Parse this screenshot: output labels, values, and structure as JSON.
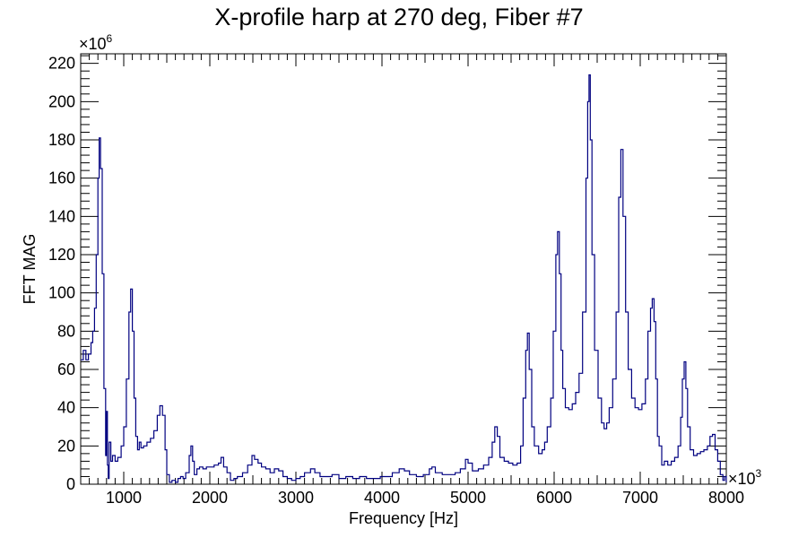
{
  "chart_data": {
    "type": "line",
    "title": "X-profile harp at 270 deg, Fiber #7",
    "xlabel": "Frequency [Hz]",
    "ylabel": "FFT MAG",
    "x_multiplier": "×10",
    "x_multiplier_exp": "3",
    "y_multiplier": "×10",
    "y_multiplier_exp": "6",
    "xlim": [
      0.5,
      8
    ],
    "ylim": [
      0,
      225
    ],
    "x_ticks": [
      1,
      2,
      3,
      4,
      5,
      6,
      7,
      8
    ],
    "x_tick_labels": [
      "1000",
      "2000",
      "3000",
      "4000",
      "5000",
      "6000",
      "7000",
      "8000"
    ],
    "y_ticks": [
      0,
      20,
      40,
      60,
      80,
      100,
      120,
      140,
      160,
      180,
      200,
      220
    ],
    "y_tick_labels": [
      "0",
      "20",
      "40",
      "60",
      "80",
      "100",
      "120",
      "140",
      "160",
      "180",
      "200",
      "220"
    ],
    "grid": false,
    "line_color": "#000080",
    "series": [
      {
        "points": [
          [
            0.5,
            65
          ],
          [
            0.53,
            70
          ],
          [
            0.56,
            65
          ],
          [
            0.59,
            68
          ],
          [
            0.62,
            74
          ],
          [
            0.64,
            80
          ],
          [
            0.66,
            92
          ],
          [
            0.68,
            120
          ],
          [
            0.7,
            160
          ],
          [
            0.715,
            181
          ],
          [
            0.73,
            165
          ],
          [
            0.75,
            110
          ],
          [
            0.77,
            50
          ],
          [
            0.79,
            15
          ],
          [
            0.8,
            38
          ],
          [
            0.81,
            10
          ],
          [
            0.82,
            3
          ],
          [
            0.83,
            22
          ],
          [
            0.85,
            12
          ],
          [
            0.87,
            15
          ],
          [
            0.9,
            12
          ],
          [
            0.93,
            14
          ],
          [
            0.97,
            20
          ],
          [
            1.0,
            30
          ],
          [
            1.03,
            55
          ],
          [
            1.06,
            90
          ],
          [
            1.08,
            102
          ],
          [
            1.1,
            80
          ],
          [
            1.12,
            45
          ],
          [
            1.14,
            25
          ],
          [
            1.16,
            18
          ],
          [
            1.18,
            22
          ],
          [
            1.2,
            19
          ],
          [
            1.23,
            20
          ],
          [
            1.27,
            22
          ],
          [
            1.31,
            24
          ],
          [
            1.35,
            28
          ],
          [
            1.39,
            36
          ],
          [
            1.42,
            41
          ],
          [
            1.45,
            36
          ],
          [
            1.48,
            18
          ],
          [
            1.5,
            5
          ],
          [
            1.53,
            1
          ],
          [
            1.56,
            2
          ],
          [
            1.6,
            1
          ],
          [
            1.63,
            3
          ],
          [
            1.66,
            4
          ],
          [
            1.69,
            3
          ],
          [
            1.72,
            6
          ],
          [
            1.76,
            15
          ],
          [
            1.78,
            20
          ],
          [
            1.8,
            12
          ],
          [
            1.82,
            5
          ],
          [
            1.85,
            8
          ],
          [
            1.88,
            9
          ],
          [
            1.92,
            8
          ],
          [
            1.96,
            9
          ],
          [
            2.0,
            9
          ],
          [
            2.05,
            10
          ],
          [
            2.1,
            11
          ],
          [
            2.13,
            14
          ],
          [
            2.16,
            9
          ],
          [
            2.2,
            6
          ],
          [
            2.24,
            2
          ],
          [
            2.28,
            3
          ],
          [
            2.32,
            4
          ],
          [
            2.38,
            6
          ],
          [
            2.44,
            10
          ],
          [
            2.49,
            15
          ],
          [
            2.52,
            13
          ],
          [
            2.56,
            11
          ],
          [
            2.6,
            9
          ],
          [
            2.65,
            8
          ],
          [
            2.7,
            6
          ],
          [
            2.75,
            8
          ],
          [
            2.8,
            7
          ],
          [
            2.85,
            4
          ],
          [
            2.9,
            3
          ],
          [
            2.95,
            2
          ],
          [
            3.0,
            3
          ],
          [
            3.05,
            4
          ],
          [
            3.1,
            6
          ],
          [
            3.17,
            8
          ],
          [
            3.22,
            6
          ],
          [
            3.28,
            4
          ],
          [
            3.35,
            4
          ],
          [
            3.42,
            5
          ],
          [
            3.5,
            3
          ],
          [
            3.58,
            4
          ],
          [
            3.66,
            3
          ],
          [
            3.74,
            4
          ],
          [
            3.82,
            3
          ],
          [
            3.9,
            3
          ],
          [
            3.98,
            4
          ],
          [
            4.05,
            4
          ],
          [
            4.12,
            6
          ],
          [
            4.2,
            8
          ],
          [
            4.26,
            7
          ],
          [
            4.32,
            5
          ],
          [
            4.4,
            4
          ],
          [
            4.48,
            5
          ],
          [
            4.55,
            8
          ],
          [
            4.58,
            9
          ],
          [
            4.62,
            6
          ],
          [
            4.7,
            5
          ],
          [
            4.78,
            5
          ],
          [
            4.85,
            6
          ],
          [
            4.91,
            8
          ],
          [
            4.97,
            13
          ],
          [
            5.0,
            11
          ],
          [
            5.05,
            7
          ],
          [
            5.12,
            8
          ],
          [
            5.18,
            10
          ],
          [
            5.24,
            14
          ],
          [
            5.28,
            22
          ],
          [
            5.31,
            30
          ],
          [
            5.34,
            25
          ],
          [
            5.37,
            14
          ],
          [
            5.42,
            12
          ],
          [
            5.47,
            11
          ],
          [
            5.52,
            10
          ],
          [
            5.57,
            11
          ],
          [
            5.61,
            20
          ],
          [
            5.64,
            45
          ],
          [
            5.67,
            70
          ],
          [
            5.69,
            79
          ],
          [
            5.71,
            60
          ],
          [
            5.74,
            30
          ],
          [
            5.77,
            20
          ],
          [
            5.82,
            16
          ],
          [
            5.86,
            18
          ],
          [
            5.89,
            22
          ],
          [
            5.92,
            30
          ],
          [
            5.96,
            45
          ],
          [
            5.99,
            80
          ],
          [
            6.02,
            120
          ],
          [
            6.04,
            132
          ],
          [
            6.06,
            110
          ],
          [
            6.08,
            70
          ],
          [
            6.1,
            50
          ],
          [
            6.13,
            40
          ],
          [
            6.17,
            39
          ],
          [
            6.21,
            42
          ],
          [
            6.25,
            48
          ],
          [
            6.29,
            58
          ],
          [
            6.33,
            90
          ],
          [
            6.37,
            160
          ],
          [
            6.39,
            200
          ],
          [
            6.405,
            214
          ],
          [
            6.42,
            180
          ],
          [
            6.44,
            120
          ],
          [
            6.47,
            70
          ],
          [
            6.51,
            45
          ],
          [
            6.55,
            32
          ],
          [
            6.58,
            29
          ],
          [
            6.61,
            32
          ],
          [
            6.64,
            40
          ],
          [
            6.68,
            55
          ],
          [
            6.72,
            90
          ],
          [
            6.75,
            150
          ],
          [
            6.775,
            175
          ],
          [
            6.8,
            140
          ],
          [
            6.83,
            90
          ],
          [
            6.86,
            60
          ],
          [
            6.9,
            45
          ],
          [
            6.94,
            40
          ],
          [
            6.98,
            39
          ],
          [
            7.02,
            42
          ],
          [
            7.06,
            55
          ],
          [
            7.09,
            80
          ],
          [
            7.12,
            92
          ],
          [
            7.14,
            97
          ],
          [
            7.16,
            85
          ],
          [
            7.18,
            55
          ],
          [
            7.2,
            25
          ],
          [
            7.22,
            20
          ],
          [
            7.25,
            10
          ],
          [
            7.28,
            12
          ],
          [
            7.32,
            10
          ],
          [
            7.36,
            12
          ],
          [
            7.4,
            14
          ],
          [
            7.44,
            20
          ],
          [
            7.47,
            35
          ],
          [
            7.49,
            55
          ],
          [
            7.51,
            64
          ],
          [
            7.53,
            50
          ],
          [
            7.55,
            30
          ],
          [
            7.58,
            18
          ],
          [
            7.62,
            15
          ],
          [
            7.66,
            16
          ],
          [
            7.7,
            17
          ],
          [
            7.74,
            18
          ],
          [
            7.78,
            20
          ],
          [
            7.81,
            25
          ],
          [
            7.84,
            26
          ],
          [
            7.87,
            18
          ],
          [
            7.9,
            12
          ],
          [
            7.93,
            5
          ],
          [
            7.96,
            2
          ],
          [
            7.98,
            4
          ],
          [
            8.0,
            1
          ]
        ]
      }
    ]
  }
}
